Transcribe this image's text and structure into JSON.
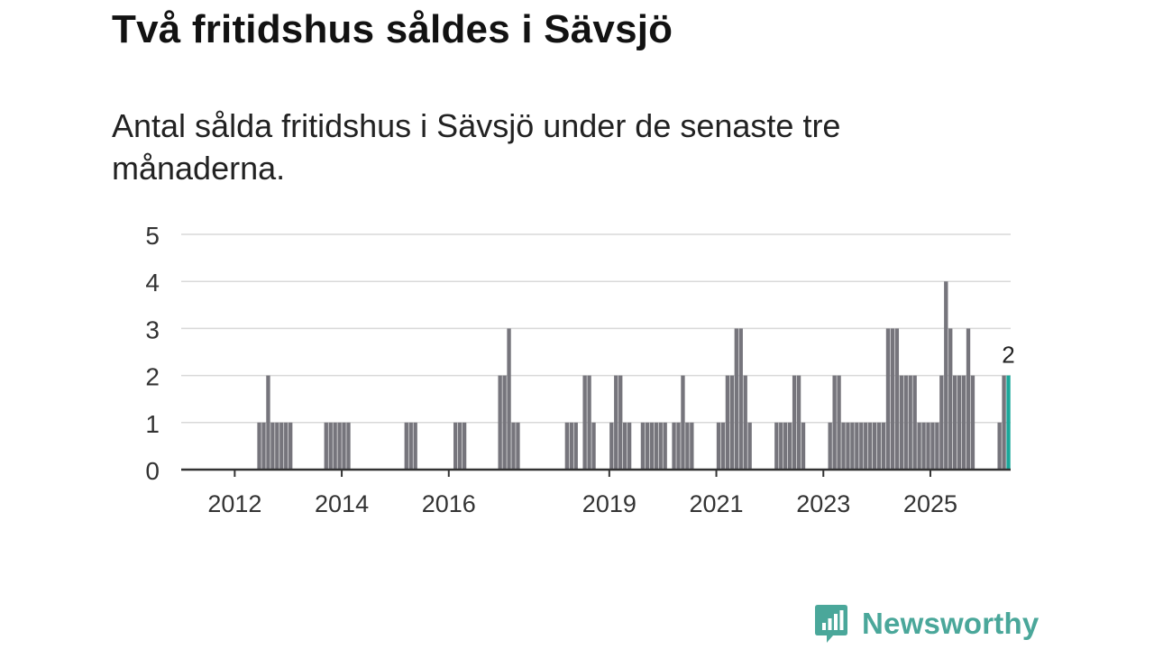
{
  "title": "Två fritidshus såldes i Sävsjö",
  "subtitle": "Antal sålda fritidshus i Sävsjö under de senaste tre månaderna.",
  "brand": {
    "name": "Newsworthy",
    "icon": "newsworthy-logo-icon",
    "color": "#4aa79a"
  },
  "chart_data": {
    "type": "bar",
    "title": "Två fritidshus såldes i Sävsjö",
    "xlabel": "",
    "ylabel": "",
    "ylim": [
      0,
      5
    ],
    "yticks": [
      0,
      1,
      2,
      3,
      4,
      5
    ],
    "grid": true,
    "interval": "monthly (rolling three-month window)",
    "xlim": [
      "2011-01",
      "2026-07"
    ],
    "x_tick_labels": [
      "2012",
      "2014",
      "2016",
      "2019",
      "2021",
      "2023",
      "2025"
    ],
    "bar_color": "#76757c",
    "highlight_color": "#1aa89a",
    "highlight_label": "2",
    "data": [
      {
        "x": "2012-06",
        "v": 1
      },
      {
        "x": "2012-07",
        "v": 1
      },
      {
        "x": "2012-08",
        "v": 2
      },
      {
        "x": "2012-09",
        "v": 1
      },
      {
        "x": "2012-10",
        "v": 1
      },
      {
        "x": "2012-11",
        "v": 1
      },
      {
        "x": "2012-12",
        "v": 1
      },
      {
        "x": "2013-01",
        "v": 1
      },
      {
        "x": "2013-09",
        "v": 1
      },
      {
        "x": "2013-10",
        "v": 1
      },
      {
        "x": "2013-11",
        "v": 1
      },
      {
        "x": "2013-12",
        "v": 1
      },
      {
        "x": "2014-01",
        "v": 1
      },
      {
        "x": "2014-02",
        "v": 1
      },
      {
        "x": "2015-03",
        "v": 1
      },
      {
        "x": "2015-04",
        "v": 1
      },
      {
        "x": "2015-05",
        "v": 1
      },
      {
        "x": "2016-02",
        "v": 1
      },
      {
        "x": "2016-03",
        "v": 1
      },
      {
        "x": "2016-04",
        "v": 1
      },
      {
        "x": "2016-12",
        "v": 2
      },
      {
        "x": "2017-01",
        "v": 2
      },
      {
        "x": "2017-02",
        "v": 3
      },
      {
        "x": "2017-03",
        "v": 1
      },
      {
        "x": "2017-04",
        "v": 1
      },
      {
        "x": "2018-03",
        "v": 1
      },
      {
        "x": "2018-04",
        "v": 1
      },
      {
        "x": "2018-05",
        "v": 1
      },
      {
        "x": "2018-07",
        "v": 2
      },
      {
        "x": "2018-08",
        "v": 2
      },
      {
        "x": "2018-09",
        "v": 1
      },
      {
        "x": "2019-01",
        "v": 1
      },
      {
        "x": "2019-02",
        "v": 2
      },
      {
        "x": "2019-03",
        "v": 2
      },
      {
        "x": "2019-04",
        "v": 1
      },
      {
        "x": "2019-05",
        "v": 1
      },
      {
        "x": "2019-08",
        "v": 1
      },
      {
        "x": "2019-09",
        "v": 1
      },
      {
        "x": "2019-10",
        "v": 1
      },
      {
        "x": "2019-11",
        "v": 1
      },
      {
        "x": "2019-12",
        "v": 1
      },
      {
        "x": "2020-01",
        "v": 1
      },
      {
        "x": "2020-03",
        "v": 1
      },
      {
        "x": "2020-04",
        "v": 1
      },
      {
        "x": "2020-05",
        "v": 2
      },
      {
        "x": "2020-06",
        "v": 1
      },
      {
        "x": "2020-07",
        "v": 1
      },
      {
        "x": "2021-01",
        "v": 1
      },
      {
        "x": "2021-02",
        "v": 1
      },
      {
        "x": "2021-03",
        "v": 2
      },
      {
        "x": "2021-04",
        "v": 2
      },
      {
        "x": "2021-05",
        "v": 3
      },
      {
        "x": "2021-06",
        "v": 3
      },
      {
        "x": "2021-07",
        "v": 2
      },
      {
        "x": "2021-08",
        "v": 1
      },
      {
        "x": "2022-02",
        "v": 1
      },
      {
        "x": "2022-03",
        "v": 1
      },
      {
        "x": "2022-04",
        "v": 1
      },
      {
        "x": "2022-05",
        "v": 1
      },
      {
        "x": "2022-06",
        "v": 2
      },
      {
        "x": "2022-07",
        "v": 2
      },
      {
        "x": "2022-08",
        "v": 1
      },
      {
        "x": "2023-02",
        "v": 1
      },
      {
        "x": "2023-03",
        "v": 2
      },
      {
        "x": "2023-04",
        "v": 2
      },
      {
        "x": "2023-05",
        "v": 1
      },
      {
        "x": "2023-06",
        "v": 1
      },
      {
        "x": "2023-07",
        "v": 1
      },
      {
        "x": "2023-08",
        "v": 1
      },
      {
        "x": "2023-09",
        "v": 1
      },
      {
        "x": "2023-10",
        "v": 1
      },
      {
        "x": "2023-11",
        "v": 1
      },
      {
        "x": "2023-12",
        "v": 1
      },
      {
        "x": "2024-01",
        "v": 1
      },
      {
        "x": "2024-02",
        "v": 1
      },
      {
        "x": "2024-03",
        "v": 3
      },
      {
        "x": "2024-04",
        "v": 3
      },
      {
        "x": "2024-05",
        "v": 3
      },
      {
        "x": "2024-06",
        "v": 2
      },
      {
        "x": "2024-07",
        "v": 2
      },
      {
        "x": "2024-08",
        "v": 2
      },
      {
        "x": "2024-09",
        "v": 2
      },
      {
        "x": "2024-10",
        "v": 1
      },
      {
        "x": "2024-11",
        "v": 1
      },
      {
        "x": "2024-12",
        "v": 1
      },
      {
        "x": "2025-01",
        "v": 1
      },
      {
        "x": "2025-02",
        "v": 1
      },
      {
        "x": "2025-03",
        "v": 2
      },
      {
        "x": "2025-04",
        "v": 4
      },
      {
        "x": "2025-05",
        "v": 3
      },
      {
        "x": "2025-06",
        "v": 2
      },
      {
        "x": "2025-07",
        "v": 2
      },
      {
        "x": "2025-08",
        "v": 2
      },
      {
        "x": "2025-09",
        "v": 3
      },
      {
        "x": "2025-10",
        "v": 2
      },
      {
        "x": "2026-04",
        "v": 1
      },
      {
        "x": "2026-05",
        "v": 2
      },
      {
        "x": "2026-06",
        "v": 2,
        "highlight": true
      }
    ]
  }
}
